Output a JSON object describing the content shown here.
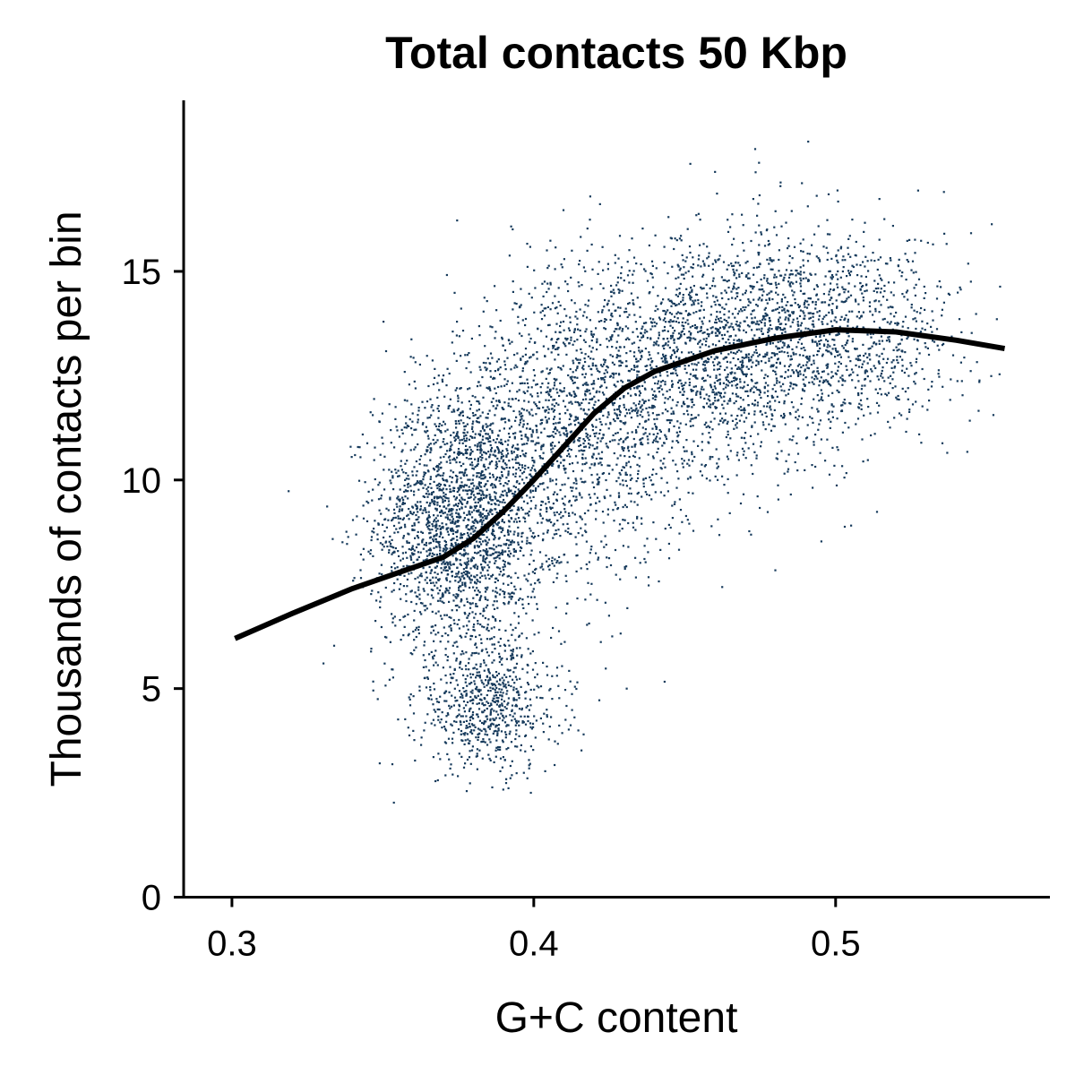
{
  "chart_data": {
    "type": "scatter",
    "title": "Total contacts 50 Kbp",
    "xlabel": "G+C content",
    "ylabel": "Thousands of contacts per bin",
    "xlim": [
      0.284,
      0.571
    ],
    "ylim": [
      0,
      19.1
    ],
    "x_ticks": [
      0.3,
      0.4,
      0.5
    ],
    "x_tick_labels": [
      "0.3",
      "0.4",
      "0.5"
    ],
    "y_ticks": [
      0,
      5,
      10,
      15
    ],
    "y_tick_labels": [
      "0",
      "5",
      "10",
      "15"
    ],
    "grid": false,
    "legend": "none",
    "point_color": "#173b5c",
    "line_color": "#000000",
    "series": [
      {
        "name": "50 Kbp bins",
        "kind": "point-cloud",
        "clusters": [
          {
            "x_center": 0.375,
            "y_center": 9.0,
            "x_sd": 0.014,
            "y_sd": 1.6,
            "weight": 0.3
          },
          {
            "x_center": 0.385,
            "y_center": 4.6,
            "x_sd": 0.012,
            "y_sd": 0.8,
            "weight": 0.1
          },
          {
            "x_center": 0.41,
            "y_center": 11.0,
            "x_sd": 0.02,
            "y_sd": 1.7,
            "weight": 0.2
          },
          {
            "x_center": 0.455,
            "y_center": 13.0,
            "x_sd": 0.025,
            "y_sd": 1.5,
            "weight": 0.25
          },
          {
            "x_center": 0.5,
            "y_center": 13.6,
            "x_sd": 0.022,
            "y_sd": 1.2,
            "weight": 0.15
          }
        ],
        "x_range": [
          0.3,
          0.556
        ],
        "y_range": [
          2.2,
          19.1
        ]
      },
      {
        "name": "smooth fit",
        "kind": "line",
        "x": [
          0.301,
          0.32,
          0.34,
          0.36,
          0.37,
          0.38,
          0.39,
          0.4,
          0.41,
          0.42,
          0.43,
          0.44,
          0.46,
          0.48,
          0.5,
          0.52,
          0.54,
          0.556
        ],
        "y": [
          6.2,
          6.8,
          7.4,
          7.9,
          8.15,
          8.6,
          9.25,
          10.0,
          10.8,
          11.6,
          12.2,
          12.6,
          13.1,
          13.4,
          13.6,
          13.55,
          13.35,
          13.15
        ]
      }
    ]
  }
}
